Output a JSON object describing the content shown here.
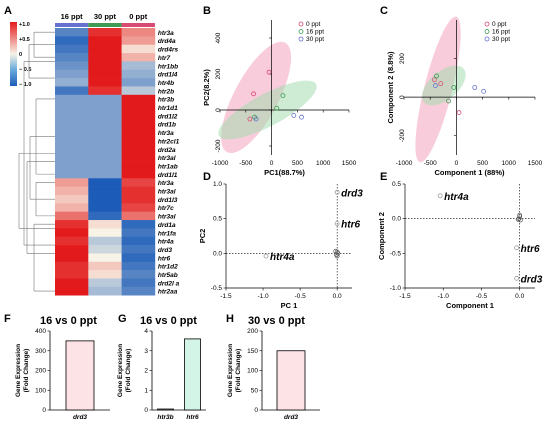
{
  "panels": {
    "A": "A",
    "B": "B",
    "C": "C",
    "D": "D",
    "E": "E",
    "F": "F",
    "G": "G",
    "H": "H"
  },
  "colors": {
    "red": "#e31a1c",
    "blue": "#2c7bd6",
    "lightblue": "#7ec8e8",
    "group0": "#d84a72",
    "group16": "#3e9b52",
    "group30": "#6670cf",
    "ellipse0": "#f4a3bf",
    "ellipse16": "#a6dbae",
    "point": "#9a9a9a",
    "barPink": "#fde2e6",
    "barGreen": "#d2f5e8"
  },
  "chart_data": [
    {
      "type": "heatmap",
      "panel": "A",
      "columns": [
        "16 ppt",
        "30 ppt",
        "0 ppt"
      ],
      "column_colors": [
        "#6670cf",
        "#3e9b52",
        "#d84a72"
      ],
      "colorbar": {
        "ticks": [
          "+1.0",
          "+0.5",
          "0",
          "− 0.5",
          "− 1.0"
        ],
        "range": [
          -1,
          1
        ]
      },
      "rows": [
        "htr3a",
        "drd4a",
        "drd4rs",
        "htr7",
        "htr1bb",
        "drd1l4",
        "htr4b",
        "htr2b",
        "htr3b",
        "htr1d1",
        "drd1l2",
        "drd1b",
        "htr3a",
        "htr2cl1",
        "drd2a",
        "htr3al",
        "htr1ab",
        "drd1l1",
        "htr3a",
        "htr3al",
        "drd1l3",
        "htr7c",
        "htr3al",
        "drd1a",
        "htr1fa",
        "htr4a",
        "drd3",
        "htr6",
        "htr1d2",
        "htr5ab",
        "drd2l a",
        "htr2aa"
      ],
      "values": [
        [
          -0.7,
          0.9,
          0.5
        ],
        [
          -0.9,
          1.0,
          0.4
        ],
        [
          -0.8,
          1.0,
          0.1
        ],
        [
          -0.7,
          1.0,
          0.3
        ],
        [
          -0.6,
          1.0,
          -0.3
        ],
        [
          -0.5,
          1.0,
          -0.4
        ],
        [
          -0.4,
          1.0,
          -0.5
        ],
        [
          -0.8,
          0.9,
          -0.2
        ],
        [
          -0.5,
          -0.5,
          1.0
        ],
        [
          -0.5,
          -0.5,
          1.0
        ],
        [
          -0.5,
          -0.5,
          1.0
        ],
        [
          -0.5,
          -0.5,
          1.0
        ],
        [
          -0.5,
          -0.5,
          1.0
        ],
        [
          -0.5,
          -0.5,
          1.0
        ],
        [
          -0.5,
          -0.5,
          1.0
        ],
        [
          -0.5,
          -0.5,
          1.0
        ],
        [
          -0.5,
          -0.5,
          1.0
        ],
        [
          -0.5,
          -0.5,
          1.0
        ],
        [
          0.4,
          -1.0,
          0.8
        ],
        [
          0.3,
          -1.0,
          0.9
        ],
        [
          0.2,
          -1.0,
          0.9
        ],
        [
          0.3,
          -1.0,
          0.8
        ],
        [
          0.6,
          -0.9,
          0.6
        ],
        [
          0.9,
          0.1,
          -0.9
        ],
        [
          1.0,
          0.0,
          -0.8
        ],
        [
          0.9,
          -0.2,
          -0.9
        ],
        [
          1.0,
          -0.1,
          -0.8
        ],
        [
          1.0,
          0.0,
          -0.9
        ],
        [
          0.9,
          0.2,
          -0.8
        ],
        [
          0.9,
          0.1,
          -0.7
        ],
        [
          1.0,
          -0.2,
          -0.8
        ],
        [
          1.0,
          -0.3,
          -0.7
        ]
      ]
    },
    {
      "type": "scatter",
      "panel": "B",
      "xlabel": "PC1(88.7%)",
      "ylabel": "PC2(8.2%)",
      "xlim": [
        -1000,
        1500
      ],
      "ylim": [
        -250,
        500
      ],
      "xticks": [
        -1000,
        -500,
        0,
        500,
        1000,
        1500
      ],
      "yticks": [
        -200,
        0,
        200,
        400
      ],
      "legend": [
        "0 ppt",
        "16 ppt",
        "30 ppt"
      ],
      "series": [
        {
          "name": "0 ppt",
          "points": [
            [
              -50,
              210
            ],
            [
              -350,
              90
            ],
            [
              -420,
              -50
            ]
          ]
        },
        {
          "name": "16 ppt",
          "points": [
            [
              220,
              80
            ],
            [
              100,
              10
            ],
            [
              -330,
              -40
            ]
          ]
        },
        {
          "name": "30 ppt",
          "points": [
            [
              430,
              -30
            ],
            [
              580,
              -40
            ],
            [
              -300,
              -50
            ]
          ]
        }
      ]
    },
    {
      "type": "scatter",
      "panel": "C",
      "xlabel": "Component 1 (88%)",
      "ylabel": "Component 2 (8.8%)",
      "xlim": [
        -1000,
        1500
      ],
      "ylim": [
        -300,
        400
      ],
      "xticks": [
        -1000,
        -500,
        0,
        500,
        1000,
        1500
      ],
      "yticks": [
        -200,
        0,
        200
      ],
      "legend": [
        "0 ppt",
        "16 ppt",
        "30 ppt"
      ],
      "series": [
        {
          "name": "0 ppt",
          "points": [
            [
              -420,
              90
            ],
            [
              -300,
              70
            ],
            [
              50,
              -80
            ]
          ]
        },
        {
          "name": "16 ppt",
          "points": [
            [
              -380,
              110
            ],
            [
              -50,
              50
            ],
            [
              -150,
              -20
            ]
          ]
        },
        {
          "name": "30 ppt",
          "points": [
            [
              350,
              50
            ],
            [
              520,
              30
            ],
            [
              -400,
              60
            ]
          ]
        }
      ]
    },
    {
      "type": "scatter",
      "panel": "D",
      "xlabel": "PC 1",
      "ylabel": "PC2",
      "xlim": [
        -1.5,
        0.2
      ],
      "ylim": [
        -0.5,
        1.0
      ],
      "xticks": [
        -1.5,
        -1.0,
        -0.5,
        0.0
      ],
      "yticks": [
        -0.5,
        0.0,
        0.5,
        1.0
      ],
      "labeled_points": [
        {
          "label": "drd3",
          "x": 0.0,
          "y": 0.88
        },
        {
          "label": "htr6",
          "x": 0.0,
          "y": 0.43
        },
        {
          "label": "htr4a",
          "x": -0.96,
          "y": -0.04
        }
      ],
      "cluster": [
        [
          0.0,
          0.02
        ],
        [
          -0.01,
          -0.02
        ],
        [
          0.01,
          0.0
        ],
        [
          -0.02,
          0.03
        ],
        [
          0.0,
          -0.04
        ]
      ]
    },
    {
      "type": "scatter",
      "panel": "E",
      "xlabel": "Component 1",
      "ylabel": "Component 2",
      "xlim": [
        -1.5,
        0.2
      ],
      "ylim": [
        -1.0,
        0.5
      ],
      "xticks": [
        -1.5,
        -1.0,
        -0.5,
        0.0
      ],
      "yticks": [
        -1.0,
        -0.5,
        0.0,
        0.5
      ],
      "labeled_points": [
        {
          "label": "htr4a",
          "x": -1.04,
          "y": 0.33
        },
        {
          "label": "htr6",
          "x": -0.04,
          "y": -0.42
        },
        {
          "label": "drd3",
          "x": -0.04,
          "y": -0.86
        }
      ],
      "cluster": [
        [
          0.0,
          0.03
        ],
        [
          -0.01,
          0.0
        ],
        [
          0.01,
          -0.02
        ],
        [
          0.0,
          0.05
        ],
        [
          -0.02,
          -0.01
        ]
      ]
    },
    {
      "type": "bar",
      "panel": "F",
      "title": "16 vs 0 ppt",
      "ylabel": "Gene Expression\n(Fold Change)",
      "categories": [
        "drd3"
      ],
      "values": [
        350
      ],
      "ylim": [
        0,
        400
      ],
      "yticks": [
        0,
        100,
        200,
        300,
        400
      ]
    },
    {
      "type": "bar",
      "panel": "G",
      "title": "16 vs 0 ppt",
      "ylabel": "Gene Expression\n(Fold Change)",
      "categories": [
        "htr3b",
        "htr6"
      ],
      "values": [
        0.05,
        3.6
      ],
      "ylim": [
        0,
        4
      ],
      "yticks": [
        0,
        1,
        2,
        3,
        4
      ]
    },
    {
      "type": "bar",
      "panel": "H",
      "title": "30 vs 0 ppt",
      "ylabel": "Gene Expression\n(Fold Change)",
      "categories": [
        "drd3"
      ],
      "values": [
        150
      ],
      "ylim": [
        0,
        200
      ],
      "yticks": [
        0,
        50,
        100,
        150,
        200
      ]
    }
  ]
}
